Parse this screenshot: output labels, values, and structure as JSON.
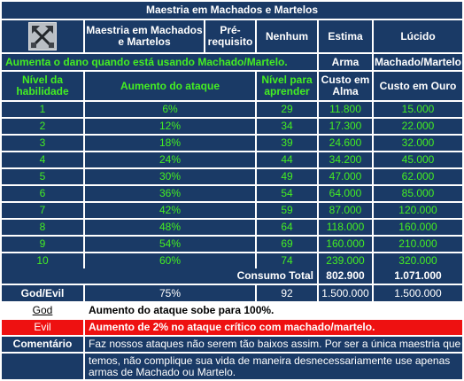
{
  "title": "Maestria em Machados e Martelos",
  "header": {
    "icon": "crossed-axes-icon",
    "skill_name": "Maestria em Machados e Martelos",
    "prereq_label": "Pré-requisito",
    "prereq_value": "Nenhum",
    "col_estima": "Estima",
    "col_lucido": "Lúcido"
  },
  "description": "Aumenta o dano quando está usando Machado/Martelo.",
  "weapon": {
    "estima": "Arma",
    "lucido": "Machado/Martelo"
  },
  "columns": {
    "level": "Nível da habilidade",
    "attack": "Aumento do ataque",
    "learn": "Nível para aprender",
    "mana": "Custo em Alma",
    "gold": "Custo em Ouro"
  },
  "rows": [
    {
      "level": "1",
      "attack": "6%",
      "learn": "29",
      "mana": "11.800",
      "gold": "15.000"
    },
    {
      "level": "2",
      "attack": "12%",
      "learn": "34",
      "mana": "17.300",
      "gold": "22.000"
    },
    {
      "level": "3",
      "attack": "18%",
      "learn": "39",
      "mana": "24.600",
      "gold": "32.000"
    },
    {
      "level": "4",
      "attack": "24%",
      "learn": "44",
      "mana": "34.200",
      "gold": "45.000"
    },
    {
      "level": "5",
      "attack": "30%",
      "learn": "49",
      "mana": "47.000",
      "gold": "62.000"
    },
    {
      "level": "6",
      "attack": "36%",
      "learn": "54",
      "mana": "64.000",
      "gold": "85.000"
    },
    {
      "level": "7",
      "attack": "42%",
      "learn": "59",
      "mana": "87.000",
      "gold": "120.000"
    },
    {
      "level": "8",
      "attack": "48%",
      "learn": "64",
      "mana": "118.000",
      "gold": "160.000"
    },
    {
      "level": "9",
      "attack": "54%",
      "learn": "69",
      "mana": "160.000",
      "gold": "210.000"
    },
    {
      "level": "10",
      "attack": "60%",
      "learn": "74",
      "mana": "239.000",
      "gold": "320.000"
    }
  ],
  "total": {
    "label": "Consumo Total",
    "mana": "802.900",
    "gold": "1.071.000"
  },
  "godevil": {
    "label": "God/Evil",
    "attack": "75%",
    "learn": "92",
    "mana": "1.500.000",
    "gold": "1.500.000"
  },
  "god": {
    "label": "God",
    "text": "Aumento do ataque sobe para 100%."
  },
  "evil": {
    "label": "Evil",
    "text": "Aumento de 2% no ataque crítico com machado/martelo."
  },
  "comment": {
    "label": "Comentário",
    "line1": "Faz nossos ataques não serem tão baixos assim. Por ser a única maestria que",
    "line2": "temos, não complique sua vida de maneira desnecessariamente use apenas",
    "line3": "armas de Machado ou Martelo."
  }
}
